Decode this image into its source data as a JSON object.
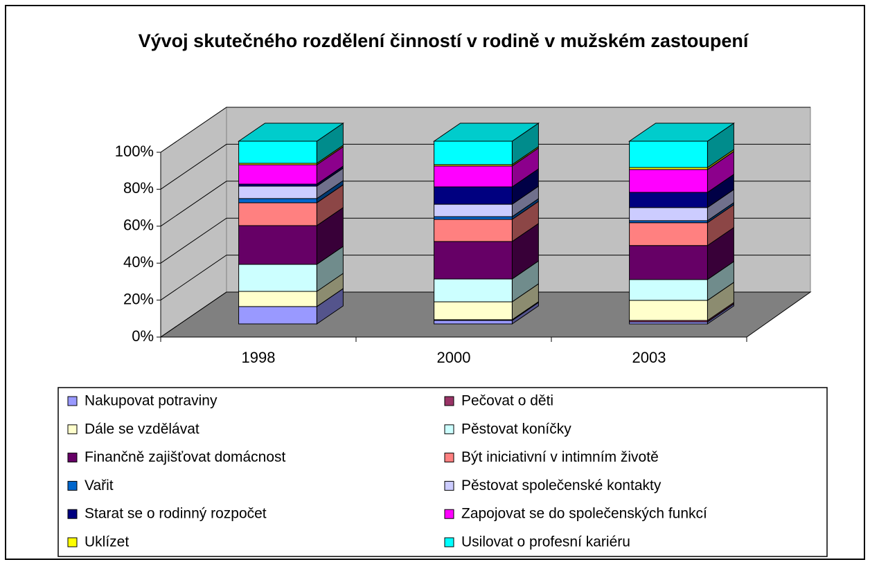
{
  "chart_data": {
    "type": "bar",
    "stacked": true,
    "title": "Vývoj skutečného rozdělení činností v rodině v mužském zastoupení",
    "categories": [
      "1998",
      "2000",
      "2003"
    ],
    "ylim": [
      0,
      100
    ],
    "yticks": [
      {
        "value": 0,
        "label": "0%"
      },
      {
        "value": 20,
        "label": "20%"
      },
      {
        "value": 40,
        "label": "40%"
      },
      {
        "value": 60,
        "label": "60%"
      },
      {
        "value": 80,
        "label": "80%"
      },
      {
        "value": 100,
        "label": "100%"
      }
    ],
    "grid": true,
    "legend": "bottom",
    "series": [
      {
        "name": "Nakupovat potraviny",
        "color": "#9999ff",
        "values": [
          9.5,
          1.9,
          1.1
        ]
      },
      {
        "name": "Pečovat o děti",
        "color": "#993366",
        "values": [
          0,
          0.4,
          0.8
        ]
      },
      {
        "name": "Dále se vzdělávat",
        "color": "#ffffcc",
        "values": [
          8.3,
          9.8,
          11.0
        ]
      },
      {
        "name": "Pěstovat koníčky",
        "color": "#ccffff",
        "values": [
          14.8,
          12.5,
          11.4
        ]
      },
      {
        "name": "Finančně zajišťovat domácnost",
        "color": "#660066",
        "values": [
          21.2,
          20.5,
          18.6
        ]
      },
      {
        "name": "Být iniciativní v intimním životě",
        "color": "#ff8080",
        "values": [
          12.5,
          12.1,
          12.5
        ]
      },
      {
        "name": "Vařit",
        "color": "#0066cc",
        "values": [
          2.3,
          1.5,
          1.1
        ]
      },
      {
        "name": "Pěstovat společenské kontakty",
        "color": "#ccccff",
        "values": [
          6.8,
          6.8,
          7.2
        ]
      },
      {
        "name": "Starat se o rodinný rozpočet",
        "color": "#000080",
        "values": [
          1.1,
          9.5,
          8.3
        ]
      },
      {
        "name": "Zapojovat se do společenských funkcí",
        "color": "#ff00ff",
        "values": [
          10.6,
          11.4,
          12.5
        ]
      },
      {
        "name": "Uklízet",
        "color": "#ffff00",
        "values": [
          0.8,
          0.8,
          1.1
        ]
      },
      {
        "name": "Usilovat o profesní kariéru",
        "color": "#00ffff",
        "values": [
          12.1,
          12.8,
          14.4
        ]
      }
    ]
  }
}
